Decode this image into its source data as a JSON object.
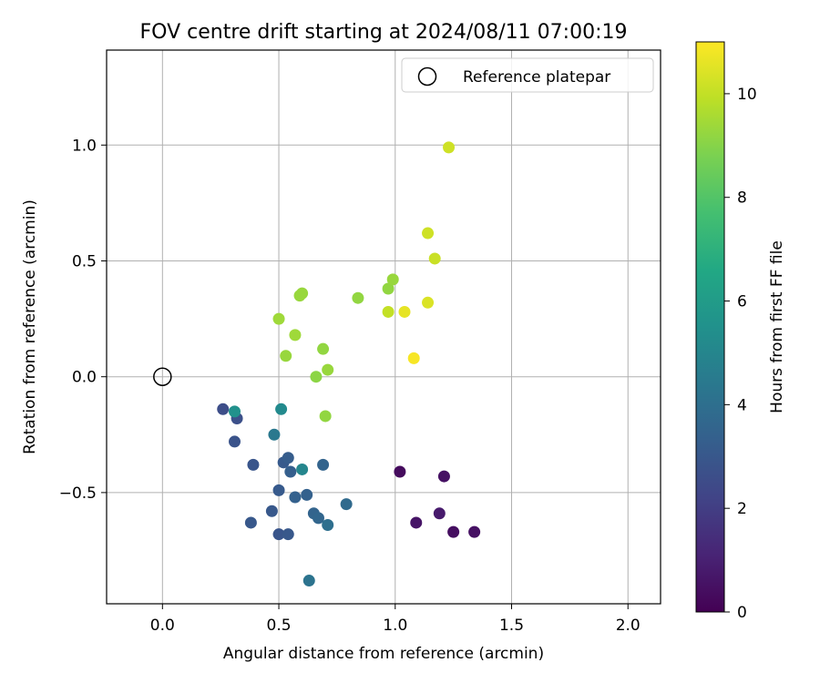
{
  "chart_data": {
    "type": "scatter",
    "title": "FOV centre drift starting at 2024/08/11 07:00:19",
    "xlabel": "Angular distance from reference (arcmin)",
    "ylabel": "Rotation from reference (arcmin)",
    "xlim": [
      -0.24,
      2.14
    ],
    "ylim": [
      -0.98,
      1.41
    ],
    "xticks": [
      0.0,
      0.5,
      1.0,
      1.5,
      2.0
    ],
    "xtick_labels": [
      "0.0",
      "0.5",
      "1.0",
      "1.5",
      "2.0"
    ],
    "yticks": [
      -0.5,
      0.0,
      0.5,
      1.0
    ],
    "ytick_labels": [
      "−0.5",
      "0.0",
      "0.5",
      "1.0"
    ],
    "grid": true,
    "legend": {
      "position": "top-right",
      "entries": [
        "Reference platepar"
      ]
    },
    "reference_point": {
      "x": 0.0,
      "y": 0.0
    },
    "colorbar": {
      "label": "Hours from first FF file",
      "range": [
        0,
        11
      ],
      "ticks": [
        0,
        2,
        4,
        6,
        8,
        10
      ],
      "tick_labels": [
        "0",
        "2",
        "4",
        "6",
        "8",
        "10"
      ],
      "colormap": "viridis"
    },
    "points": [
      {
        "x": 1.02,
        "y": -0.41,
        "h": 0.3
      },
      {
        "x": 1.21,
        "y": -0.43,
        "h": 0.5
      },
      {
        "x": 1.09,
        "y": -0.63,
        "h": 0.6
      },
      {
        "x": 1.19,
        "y": -0.59,
        "h": 0.8
      },
      {
        "x": 1.25,
        "y": -0.67,
        "h": 0.4
      },
      {
        "x": 1.34,
        "y": -0.67,
        "h": 0.5
      },
      {
        "x": 0.26,
        "y": -0.14,
        "h": 2.6
      },
      {
        "x": 0.32,
        "y": -0.18,
        "h": 2.7
      },
      {
        "x": 0.31,
        "y": -0.28,
        "h": 2.8
      },
      {
        "x": 0.39,
        "y": -0.38,
        "h": 2.9
      },
      {
        "x": 0.38,
        "y": -0.63,
        "h": 3.0
      },
      {
        "x": 0.47,
        "y": -0.58,
        "h": 3.0
      },
      {
        "x": 0.5,
        "y": -0.49,
        "h": 3.1
      },
      {
        "x": 0.5,
        "y": -0.68,
        "h": 2.9
      },
      {
        "x": 0.54,
        "y": -0.68,
        "h": 3.0
      },
      {
        "x": 0.52,
        "y": -0.37,
        "h": 3.1
      },
      {
        "x": 0.54,
        "y": -0.35,
        "h": 3.2
      },
      {
        "x": 0.55,
        "y": -0.41,
        "h": 3.3
      },
      {
        "x": 0.57,
        "y": -0.52,
        "h": 3.4
      },
      {
        "x": 0.62,
        "y": -0.51,
        "h": 3.4
      },
      {
        "x": 0.65,
        "y": -0.59,
        "h": 3.5
      },
      {
        "x": 0.67,
        "y": -0.61,
        "h": 3.6
      },
      {
        "x": 0.69,
        "y": -0.38,
        "h": 3.5
      },
      {
        "x": 0.71,
        "y": -0.64,
        "h": 4.0
      },
      {
        "x": 0.79,
        "y": -0.55,
        "h": 3.8
      },
      {
        "x": 0.63,
        "y": -0.88,
        "h": 4.2
      },
      {
        "x": 0.48,
        "y": -0.25,
        "h": 4.4
      },
      {
        "x": 0.6,
        "y": -0.4,
        "h": 5.0
      },
      {
        "x": 0.51,
        "y": -0.14,
        "h": 5.2
      },
      {
        "x": 0.31,
        "y": -0.15,
        "h": 5.5
      },
      {
        "x": 0.7,
        "y": -0.17,
        "h": 9.2
      },
      {
        "x": 0.66,
        "y": 0.0,
        "h": 9.1
      },
      {
        "x": 0.71,
        "y": 0.03,
        "h": 9.3
      },
      {
        "x": 0.69,
        "y": 0.12,
        "h": 9.2
      },
      {
        "x": 0.53,
        "y": 0.09,
        "h": 9.3
      },
      {
        "x": 0.57,
        "y": 0.18,
        "h": 9.4
      },
      {
        "x": 0.5,
        "y": 0.25,
        "h": 9.4
      },
      {
        "x": 0.59,
        "y": 0.35,
        "h": 9.3
      },
      {
        "x": 0.6,
        "y": 0.36,
        "h": 9.3
      },
      {
        "x": 0.84,
        "y": 0.34,
        "h": 9.2
      },
      {
        "x": 0.97,
        "y": 0.38,
        "h": 9.2
      },
      {
        "x": 0.99,
        "y": 0.42,
        "h": 9.3
      },
      {
        "x": 0.97,
        "y": 0.28,
        "h": 10.0
      },
      {
        "x": 1.04,
        "y": 0.28,
        "h": 10.6
      },
      {
        "x": 1.14,
        "y": 0.32,
        "h": 10.4
      },
      {
        "x": 1.08,
        "y": 0.08,
        "h": 10.9
      },
      {
        "x": 1.14,
        "y": 0.62,
        "h": 10.2
      },
      {
        "x": 1.17,
        "y": 0.51,
        "h": 10.1
      },
      {
        "x": 1.23,
        "y": 0.99,
        "h": 10.2
      }
    ]
  }
}
